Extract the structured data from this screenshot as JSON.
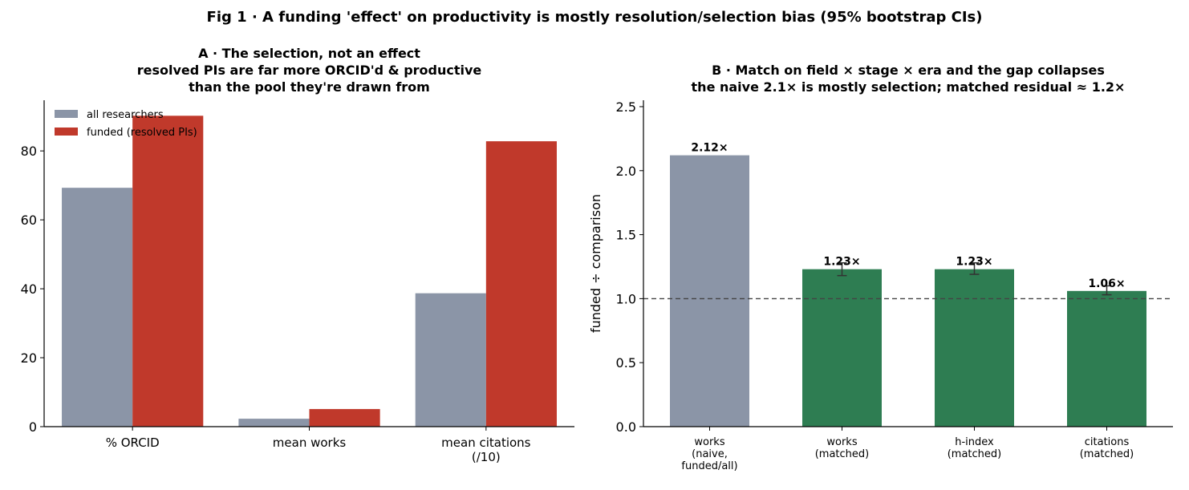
{
  "figure": {
    "suptitle": "Fig 1 · A funding 'effect' on productivity is mostly resolution/selection bias (95% bootstrap CIs)"
  },
  "colors": {
    "all": "#8b95a7",
    "funded": "#c0392b",
    "matched": "#2e7d52",
    "axis": "#000000",
    "refline": "#444444",
    "errorbar": "#333333"
  },
  "chart_data": [
    {
      "type": "bar",
      "title_lines": [
        "A · The selection, not an effect",
        "resolved PIs are far more ORCID'd & productive",
        "than the pool they're drawn from"
      ],
      "categories": [
        [
          "% ORCID"
        ],
        [
          "mean works"
        ],
        [
          "mean citations",
          "(/10)"
        ]
      ],
      "series": [
        {
          "name": "all researchers",
          "color_key": "all",
          "values": [
            69.3,
            2.3,
            38.7
          ]
        },
        {
          "name": "funded (resolved PIs)",
          "color_key": "funded",
          "values": [
            90.2,
            5.1,
            82.8
          ]
        }
      ],
      "ylim": [
        0,
        94.7
      ],
      "yticks": [
        0,
        20,
        40,
        60,
        80
      ],
      "ylabel": "",
      "legend": "top-left",
      "grid": false
    },
    {
      "type": "bar",
      "title_lines": [
        "B · Match on field × stage × era and the gap collapses",
        "the naive 2.1× is mostly selection; matched residual ≈ 1.2×"
      ],
      "categories": [
        [
          "works",
          "(naive,",
          "funded/all)"
        ],
        [
          "works",
          "(matched)"
        ],
        [
          "h-index",
          "(matched)"
        ],
        [
          "citations",
          "(matched)"
        ]
      ],
      "values": [
        2.12,
        1.23,
        1.23,
        1.06
      ],
      "labels": [
        "2.12×",
        "1.23×",
        "1.23×",
        "1.06×"
      ],
      "color_keys": [
        "all",
        "matched",
        "matched",
        "matched"
      ],
      "ci": [
        null,
        [
          1.18,
          1.28
        ],
        [
          1.19,
          1.28
        ],
        [
          1.03,
          1.1
        ]
      ],
      "refline": 1.0,
      "ylim": [
        0,
        2.55
      ],
      "yticks": [
        "0.0",
        "0.5",
        "1.0",
        "1.5",
        "2.0",
        "2.5"
      ],
      "ylabel": "funded ÷ comparison",
      "grid": false
    }
  ]
}
